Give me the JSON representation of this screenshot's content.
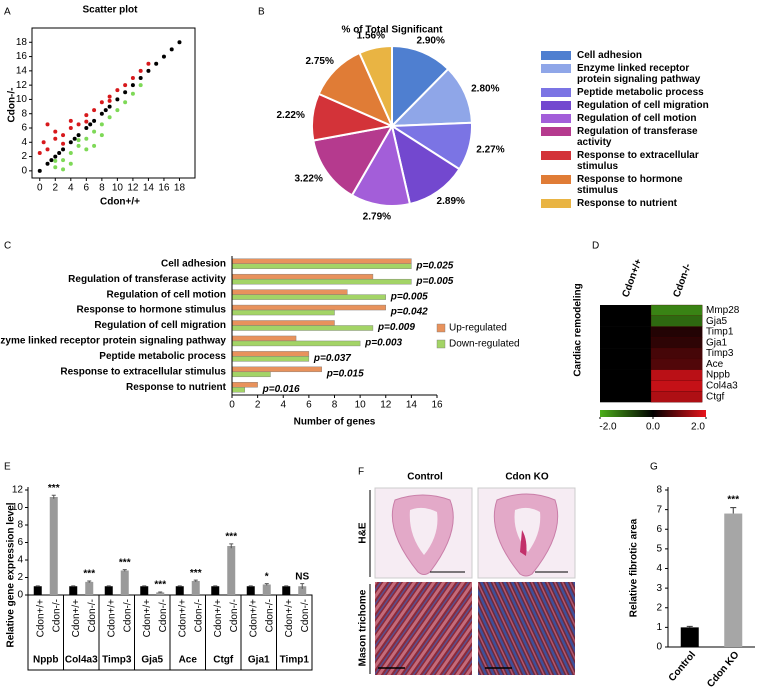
{
  "chart_data": [
    {
      "panel": "A",
      "type": "scatter",
      "title": "Scatter plot",
      "xlabel": "Cdon+/+",
      "ylabel": "Cdon-/-",
      "xlim": [
        -1,
        20
      ],
      "ylim": [
        -1,
        20
      ],
      "xticks": [
        0,
        2,
        4,
        6,
        8,
        10,
        12,
        14,
        16,
        18
      ],
      "yticks": [
        0,
        2,
        4,
        6,
        8,
        10,
        12,
        14,
        16,
        18
      ],
      "series": [
        {
          "color": "#000000",
          "x": [
            0,
            1,
            2,
            3,
            4,
            5,
            6,
            7,
            8,
            9,
            10,
            11,
            12,
            13,
            14,
            15,
            16,
            17,
            18,
            1.5,
            2.5,
            4.5,
            6.5,
            8.5
          ],
          "y": [
            0,
            1,
            2,
            3,
            4,
            5,
            6,
            7,
            8,
            9,
            10,
            11,
            12,
            13,
            14,
            15,
            16,
            17,
            18,
            1.5,
            2.5,
            4.5,
            6.5,
            8.5
          ]
        },
        {
          "color": "#d7191c",
          "x": [
            0.5,
            1,
            1,
            2,
            3,
            3,
            4,
            5,
            6,
            6,
            7,
            8,
            9,
            9,
            10,
            11,
            12,
            13,
            14,
            0,
            2,
            4
          ],
          "y": [
            4,
            3,
            6.5,
            4.5,
            5,
            3.8,
            6,
            6.5,
            7.8,
            6.9,
            8.5,
            9.6,
            10.4,
            9.8,
            11.3,
            12,
            13,
            14,
            15,
            2.5,
            5.5,
            7
          ]
        },
        {
          "color": "#7ed957",
          "x": [
            2,
            2,
            3,
            4,
            4,
            5,
            5,
            6,
            6,
            7,
            8,
            8,
            9,
            10,
            11,
            12,
            13,
            3,
            7
          ],
          "y": [
            0.5,
            1.4,
            1.5,
            2.5,
            1,
            3.5,
            4.3,
            4.5,
            3,
            5.5,
            6.5,
            5,
            7.5,
            8.5,
            9.6,
            10.8,
            12,
            0.2,
            3.5
          ]
        }
      ]
    },
    {
      "panel": "B",
      "type": "pie",
      "title": "% of Total Significant",
      "categories": [
        "Cell adhesion",
        "Enzyme linked receptor protein signaling pathway",
        "Peptide metabolic process",
        "Regulation of cell migration",
        "Regulation of cell motion",
        "Regulation of transferase activity",
        "Response to extracellular stimulus",
        "Response to hormone stimulus",
        "Response to nutrient"
      ],
      "values": [
        2.9,
        2.8,
        2.27,
        2.89,
        2.79,
        3.22,
        2.22,
        2.75,
        1.56
      ],
      "value_labels": [
        "2.90%",
        "2.80%",
        "2.27%",
        "2.89%",
        "2.79%",
        "3.22%",
        "2.22%",
        "2.75%",
        "1.56%"
      ],
      "colors": [
        "#4f7fd0",
        "#8fa6e8",
        "#7b74e4",
        "#7348cf",
        "#a35ed9",
        "#b53a8e",
        "#d33339",
        "#e07c36",
        "#e9b443"
      ]
    },
    {
      "panel": "C",
      "type": "hbar",
      "xlabel": "Number of genes",
      "categories": [
        "Cell adhesion",
        "Regulation of transferase activity",
        "Regulation of cell motion",
        "Response to hormone stimulus",
        "Regulation of cell migration",
        "Enzyme linked receptor protein signaling pathway",
        "Peptide metabolic process",
        "Response to extracellular stimulus",
        "Response to nutrient"
      ],
      "series": [
        {
          "name": "Up-regulated",
          "color": "#e8925c",
          "values": [
            14,
            11,
            9,
            12,
            8,
            5,
            6,
            7,
            2
          ]
        },
        {
          "name": "Down-regulated",
          "color": "#a3d466",
          "values": [
            14,
            14,
            12,
            8,
            11,
            10,
            6,
            3,
            1
          ]
        }
      ],
      "annotations": [
        "p=0.025",
        "p=0.005",
        "p=0.005",
        "p=0.042",
        "p=0.009",
        "p=0.003",
        "p=0.037",
        "p=0.015",
        "p=0.016"
      ],
      "xlim": [
        0,
        16
      ],
      "xticks": [
        0,
        2,
        4,
        6,
        8,
        10,
        12,
        14,
        16
      ]
    },
    {
      "panel": "D",
      "type": "heatmap",
      "title": "Cardiac remodeling",
      "columns": [
        "Cdon+/+",
        "Cdon-/-"
      ],
      "rows": [
        "Mmp28",
        "Gja5",
        "Timp1",
        "Gja1",
        "Timp3",
        "Ace",
        "Nppb",
        "Col4a3",
        "Ctgf"
      ],
      "values": [
        [
          0,
          -1.5
        ],
        [
          0,
          -1.2
        ],
        [
          0,
          0.3
        ],
        [
          0,
          0.4
        ],
        [
          0,
          0.6
        ],
        [
          0,
          0.7
        ],
        [
          0,
          1.6
        ],
        [
          0,
          1.7
        ],
        [
          0,
          1.5
        ]
      ],
      "colorbar_lim": [
        -2,
        2
      ],
      "colorbar_ticks": [
        {
          "value": -2,
          "label": "-2.0"
        },
        {
          "value": 0,
          "label": "0.0"
        },
        {
          "value": 2,
          "label": "2.0"
        }
      ],
      "colors": [
        "#4caf1a",
        "#000000",
        "#e8141b"
      ]
    },
    {
      "panel": "E",
      "type": "grouped_bar",
      "ylabel": "Relative gene expression level",
      "categories": [
        "Nppb",
        "Col4a3",
        "Timp3",
        "Gja5",
        "Ace",
        "Ctgf",
        "Gja1",
        "Timp1"
      ],
      "series": [
        {
          "name": "Cdon+/+",
          "color": "#000000",
          "values": [
            1,
            1,
            1,
            1,
            1,
            1,
            1,
            1
          ],
          "errors": [
            0.05,
            0.05,
            0.05,
            0.05,
            0.05,
            0.05,
            0.05,
            0.05
          ]
        },
        {
          "name": "Cdon-/-",
          "color": "#9a9a9a",
          "values": [
            11.2,
            1.5,
            2.8,
            0.3,
            1.6,
            5.6,
            1.2,
            1.0
          ],
          "errors": [
            0.2,
            0.1,
            0.1,
            0.05,
            0.1,
            0.25,
            0.1,
            0.3
          ]
        }
      ],
      "annotations": [
        "***",
        "***",
        "***",
        "***",
        "***",
        "***",
        "*",
        "NS"
      ],
      "ylim": [
        0,
        12
      ],
      "yticks": [
        0,
        2,
        4,
        6,
        8,
        10,
        12
      ]
    },
    {
      "panel": "G",
      "type": "bar",
      "ylabel": "Relative fibrotic area",
      "categories": [
        "Control",
        "Cdon KO"
      ],
      "values": [
        1,
        6.8
      ],
      "errors": [
        0.05,
        0.3
      ],
      "colors": [
        "#000000",
        "#a6a6a6"
      ],
      "annotations": [
        null,
        "***"
      ],
      "ylim": [
        0,
        8
      ],
      "yticks": [
        0,
        1,
        2,
        3,
        4,
        5,
        6,
        7,
        8
      ]
    }
  ],
  "panel_f": {
    "panel": "F",
    "columns": [
      "Control",
      "Cdon KO"
    ],
    "rows": [
      "H&E",
      "Mason trichome"
    ]
  }
}
